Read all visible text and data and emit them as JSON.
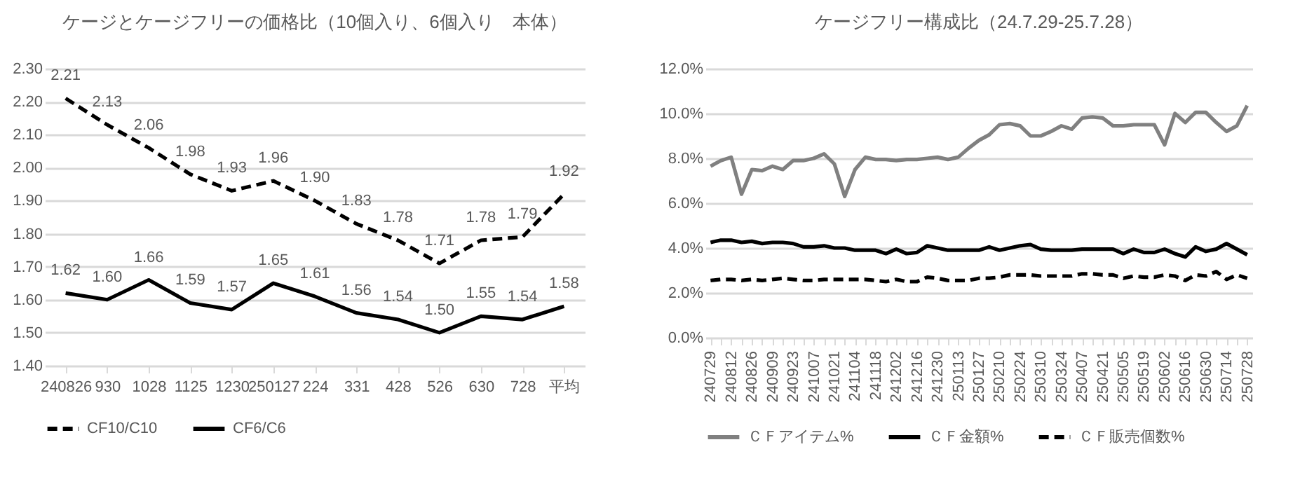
{
  "chart_data": [
    {
      "type": "line",
      "title": "ケージとケージフリーの価格比（10個入り、6個入り　本体）",
      "categories": [
        "240826",
        "930",
        "1028",
        "1125",
        "1230",
        "250127",
        "224",
        "331",
        "428",
        "526",
        "630",
        "728",
        "平均"
      ],
      "series": [
        {
          "name": "CF10/C10",
          "color": "#000000",
          "line_style": "dashed",
          "values": [
            2.21,
            2.13,
            2.06,
            1.98,
            1.93,
            1.96,
            1.9,
            1.83,
            1.78,
            1.71,
            1.78,
            1.79,
            1.92
          ],
          "value_labels": [
            "2.21",
            "2.13",
            "2.06",
            "1.98",
            "1.93",
            "1.96",
            "1.90",
            "1.83",
            "1.78",
            "1.71",
            "1.78",
            "1.79",
            "1.92"
          ]
        },
        {
          "name": "CF6/C6",
          "color": "#000000",
          "line_style": "solid",
          "values": [
            1.62,
            1.6,
            1.66,
            1.59,
            1.57,
            1.65,
            1.61,
            1.56,
            1.54,
            1.5,
            1.55,
            1.54,
            1.58
          ],
          "value_labels": [
            "1.62",
            "1.60",
            "1.66",
            "1.59",
            "1.57",
            "1.65",
            "1.61",
            "1.56",
            "1.54",
            "1.50",
            "1.55",
            "1.54",
            "1.58"
          ]
        }
      ],
      "ylim": [
        1.4,
        2.3
      ],
      "yticks": [
        {
          "value": 1.4,
          "label": "1.40"
        },
        {
          "value": 1.5,
          "label": "1.50"
        },
        {
          "value": 1.6,
          "label": "1.60"
        },
        {
          "value": 1.7,
          "label": "1.70"
        },
        {
          "value": 1.8,
          "label": "1.80"
        },
        {
          "value": 1.9,
          "label": "1.90"
        },
        {
          "value": 2.0,
          "label": "2.00"
        },
        {
          "value": 2.1,
          "label": "2.10"
        },
        {
          "value": 2.2,
          "label": "2.20"
        },
        {
          "value": 2.3,
          "label": "2.30"
        }
      ],
      "grid": "y",
      "legend": "bottom"
    },
    {
      "type": "line",
      "title": "ケージフリー構成比（24.7.29-25.7.28）",
      "categories": [
        "240729",
        null,
        "240812",
        null,
        "240826",
        null,
        "240909",
        null,
        "240923",
        null,
        "241007",
        null,
        "241021",
        null,
        "241104",
        null,
        "241118",
        null,
        "241202",
        null,
        "241216",
        null,
        "241230",
        null,
        "250113",
        null,
        "250127",
        null,
        "250210",
        null,
        "250224",
        null,
        "250310",
        null,
        "250324",
        null,
        "250407",
        null,
        "250421",
        null,
        "250505",
        null,
        "250519",
        null,
        "250602",
        null,
        "250616",
        null,
        "250630",
        null,
        "250714",
        null,
        "250728"
      ],
      "series": [
        {
          "name": "ＣＦアイテム%",
          "color": "#808080",
          "line_style": "solid",
          "values": [
            7.65,
            7.9,
            8.05,
            6.4,
            7.5,
            7.45,
            7.65,
            7.5,
            7.9,
            7.9,
            8.0,
            8.2,
            7.75,
            6.3,
            7.5,
            8.05,
            7.95,
            7.95,
            7.9,
            7.95,
            7.95,
            8.0,
            8.05,
            7.95,
            8.05,
            8.45,
            8.8,
            9.05,
            9.5,
            9.55,
            9.45,
            9.0,
            9.0,
            9.2,
            9.45,
            9.3,
            9.8,
            9.85,
            9.8,
            9.45,
            9.45,
            9.5,
            9.5,
            9.5,
            8.6,
            10.0,
            9.6,
            10.05,
            10.05,
            9.6,
            9.2,
            9.45,
            10.35
          ]
        },
        {
          "name": "ＣＦ金額%",
          "color": "#000000",
          "line_style": "solid",
          "values": [
            4.25,
            4.35,
            4.35,
            4.25,
            4.3,
            4.2,
            4.25,
            4.25,
            4.2,
            4.05,
            4.05,
            4.1,
            4.0,
            4.0,
            3.9,
            3.9,
            3.9,
            3.75,
            3.95,
            3.75,
            3.8,
            4.1,
            4.0,
            3.9,
            3.9,
            3.9,
            3.9,
            4.05,
            3.9,
            4.0,
            4.1,
            4.15,
            3.95,
            3.9,
            3.9,
            3.9,
            3.95,
            3.95,
            3.95,
            3.95,
            3.75,
            3.95,
            3.8,
            3.8,
            3.95,
            3.75,
            3.6,
            4.05,
            3.85,
            3.95,
            4.2,
            3.95,
            3.7
          ]
        },
        {
          "name": "ＣＦ販売個数%",
          "color": "#000000",
          "line_style": "dashed",
          "values": [
            2.55,
            2.6,
            2.6,
            2.55,
            2.6,
            2.55,
            2.6,
            2.65,
            2.6,
            2.55,
            2.55,
            2.6,
            2.6,
            2.6,
            2.6,
            2.6,
            2.55,
            2.5,
            2.6,
            2.5,
            2.5,
            2.7,
            2.65,
            2.55,
            2.55,
            2.55,
            2.65,
            2.65,
            2.7,
            2.8,
            2.8,
            2.8,
            2.75,
            2.75,
            2.75,
            2.75,
            2.85,
            2.85,
            2.8,
            2.8,
            2.65,
            2.75,
            2.7,
            2.7,
            2.8,
            2.75,
            2.55,
            2.8,
            2.75,
            2.95,
            2.6,
            2.8,
            2.65
          ]
        }
      ],
      "ylim": [
        0,
        12
      ],
      "yticks": [
        {
          "value": 0,
          "label": "0.0%"
        },
        {
          "value": 2,
          "label": "2.0%"
        },
        {
          "value": 4,
          "label": "4.0%"
        },
        {
          "value": 6,
          "label": "6.0%"
        },
        {
          "value": 8,
          "label": "8.0%"
        },
        {
          "value": 10,
          "label": "10.0%"
        },
        {
          "value": 12,
          "label": "12.0%"
        }
      ],
      "grid": "y",
      "legend": "bottom"
    }
  ]
}
